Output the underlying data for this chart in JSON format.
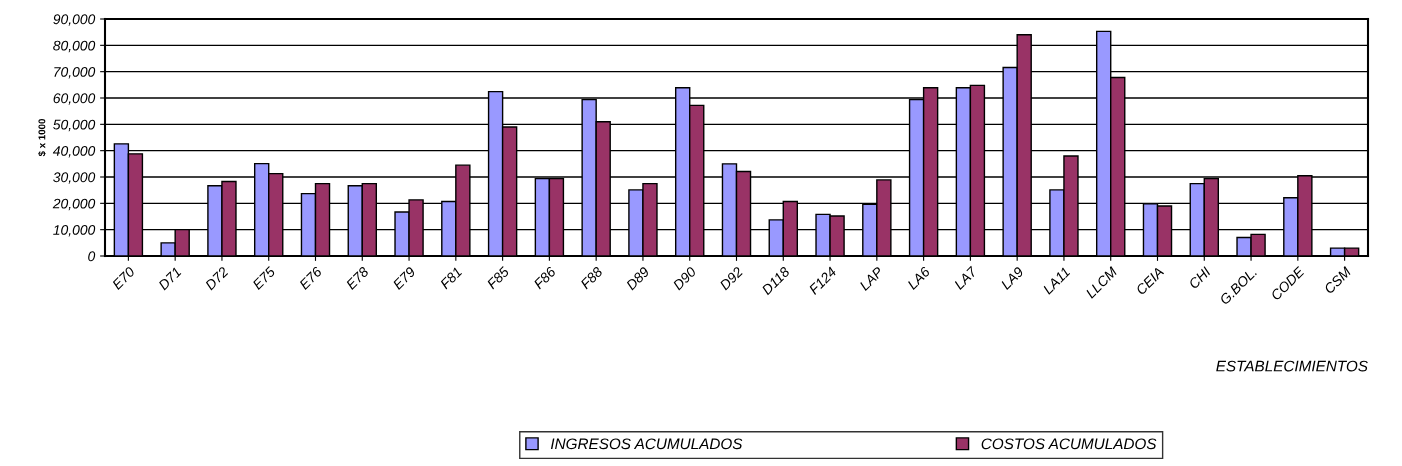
{
  "chart_data": {
    "type": "bar",
    "ylabel": "$ x 1000",
    "xlabel": "ESTABLECIMIENTOS",
    "categories": [
      "E70",
      "D71",
      "D72",
      "E75",
      "E76",
      "E78",
      "E79",
      "F81",
      "F85",
      "F86",
      "F88",
      "D89",
      "D90",
      "D92",
      "D118",
      "F124",
      "LAP",
      "LA6",
      "LA7",
      "LA9",
      "LA11",
      "LLCM",
      "CEIA",
      "CHI",
      "G.BOL.",
      "CODE",
      "CSM"
    ],
    "series": [
      {
        "name": "INGRESOS ACUMULADOS",
        "color": "#9999ff",
        "values": [
          42600,
          5000,
          26700,
          35100,
          23700,
          26700,
          16700,
          20700,
          62400,
          29400,
          59400,
          25100,
          63900,
          35000,
          13700,
          15800,
          19600,
          59400,
          63900,
          71600,
          25100,
          85300,
          19800,
          27500,
          7000,
          22100,
          3000
        ]
      },
      {
        "name": "COSTOS ACUMULADOS",
        "color": "#993366",
        "values": [
          38800,
          10000,
          28300,
          31300,
          27500,
          27500,
          21300,
          34500,
          49000,
          29400,
          51000,
          27500,
          57200,
          32100,
          20700,
          15200,
          28900,
          63900,
          64800,
          84000,
          38000,
          67800,
          19000,
          29400,
          8200,
          30500,
          3000
        ]
      }
    ],
    "ylim": [
      0,
      90000
    ],
    "yticks": [
      {
        "value": 0,
        "label": "0"
      },
      {
        "value": 10000,
        "label": "10,000"
      },
      {
        "value": 20000,
        "label": "20,000"
      },
      {
        "value": 30000,
        "label": "30,000"
      },
      {
        "value": 40000,
        "label": "40,000"
      },
      {
        "value": 50000,
        "label": "50,000"
      },
      {
        "value": 60000,
        "label": "60,000"
      },
      {
        "value": 70000,
        "label": "70,000"
      },
      {
        "value": 80000,
        "label": "80,000"
      },
      {
        "value": 90000,
        "label": "90,000"
      }
    ],
    "grid": "y",
    "legend": "bottom"
  }
}
